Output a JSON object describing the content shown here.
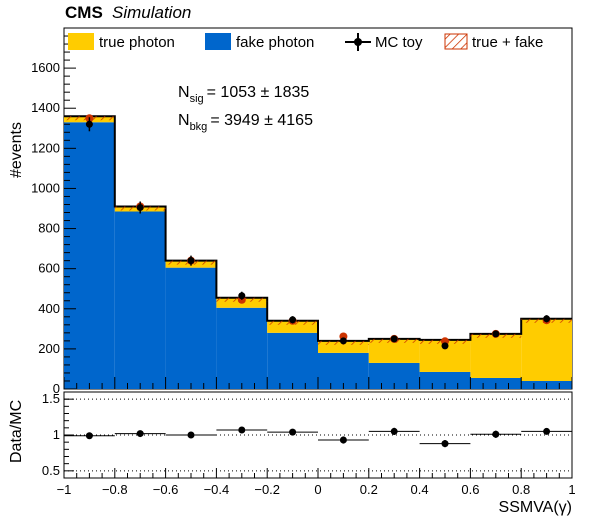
{
  "header": {
    "experiment": "CMS",
    "label": "Simulation"
  },
  "legend": [
    {
      "label": "true photon",
      "kind": "fill",
      "color": "#ffcc00"
    },
    {
      "label": "fake photon",
      "kind": "fill",
      "color": "#0066cc"
    },
    {
      "label": "MC toy",
      "kind": "marker",
      "color": "#000000"
    },
    {
      "label": "true + fake",
      "kind": "hatch",
      "color": "#cc3300"
    }
  ],
  "fit_results": {
    "sig": {
      "symbol": "N",
      "sub": "sig",
      "value": "= 1053 ± 1835"
    },
    "bkg": {
      "symbol": "N",
      "sub": "bkg",
      "value": "= 3949 ± 4165"
    }
  },
  "chart_data": [
    {
      "type": "bar",
      "stacked": true,
      "xlabel": "SSMVA(γ)",
      "ylabel": "#events",
      "xlim": [
        -1,
        1
      ],
      "ylim": [
        0,
        1800
      ],
      "x_ticks": [
        "−1",
        "−0.8",
        "−0.6",
        "−0.4",
        "−0.2",
        "0",
        "0.2",
        "0.4",
        "0.6",
        "0.8",
        "1"
      ],
      "y_ticks": [
        "0",
        "200",
        "400",
        "600",
        "800",
        "1000",
        "1200",
        "1400",
        "1600"
      ],
      "bin_edges": [
        -1,
        -0.8,
        -0.6,
        -0.4,
        -0.2,
        0,
        0.2,
        0.4,
        0.6,
        0.8,
        1
      ],
      "series": [
        {
          "name": "fake photon",
          "color": "#0066cc",
          "values": [
            1330,
            885,
            605,
            405,
            280,
            180,
            130,
            85,
            55,
            40
          ]
        },
        {
          "name": "true photon",
          "color": "#ffcc00",
          "values": [
            30,
            25,
            35,
            50,
            60,
            60,
            120,
            160,
            220,
            310
          ]
        }
      ],
      "total": [
        1360,
        910,
        640,
        455,
        340,
        240,
        250,
        245,
        275,
        350
      ],
      "mc_toy": {
        "name": "MC toy",
        "values": [
          1320,
          905,
          640,
          465,
          345,
          240,
          250,
          215,
          275,
          350
        ],
        "errors": [
          35,
          30,
          25,
          20,
          18,
          15,
          16,
          15,
          16,
          18
        ]
      },
      "true_plus_fake_markers": [
        1350,
        910,
        640,
        445,
        340,
        262,
        250,
        238,
        275,
        343
      ],
      "grid": false
    },
    {
      "type": "scatter",
      "xlabel": "",
      "ylabel": "Data/MC",
      "xlim": [
        -1,
        1
      ],
      "ylim": [
        0.4,
        1.6
      ],
      "y_ticks": [
        "0.5",
        "1",
        "1.5"
      ],
      "reference_lines": [
        0.5,
        1,
        1.5
      ],
      "x": [
        -0.9,
        -0.7,
        -0.5,
        -0.3,
        -0.1,
        0.1,
        0.3,
        0.5,
        0.7,
        0.9
      ],
      "values": [
        0.99,
        1.02,
        1.0,
        1.07,
        1.04,
        0.93,
        1.05,
        0.88,
        1.01,
        1.05
      ],
      "errors": [
        0.03,
        0.03,
        0.03,
        0.04,
        0.04,
        0.05,
        0.05,
        0.05,
        0.05,
        0.04
      ]
    }
  ]
}
